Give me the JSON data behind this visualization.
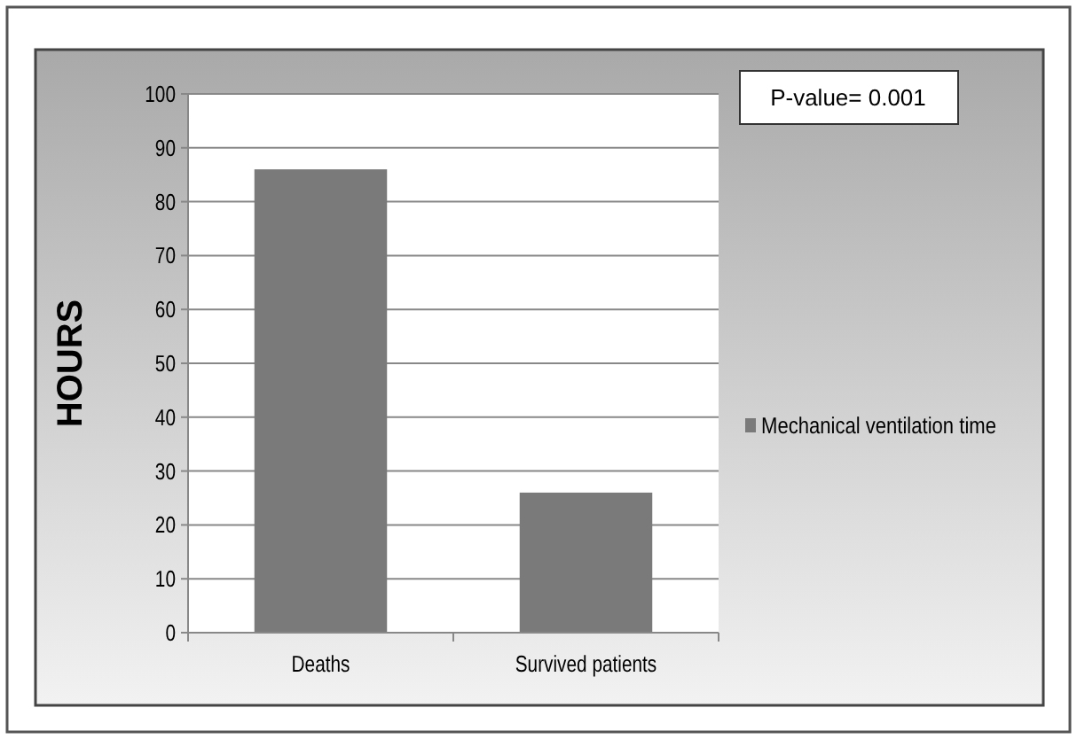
{
  "chart_data": {
    "type": "bar",
    "ylabel": "HOURS",
    "categories": [
      "Deaths",
      "Survived patients"
    ],
    "series": [
      {
        "name": "Mechanical ventilation time",
        "color": "#7a7a7a",
        "values": [
          86,
          26
        ]
      }
    ],
    "ylim": [
      0,
      100
    ],
    "yticks": [
      0,
      10,
      20,
      30,
      40,
      50,
      60,
      70,
      80,
      90,
      100
    ],
    "grid": "y",
    "legend": "right",
    "annotations": [
      "P-value= 0.001"
    ]
  }
}
